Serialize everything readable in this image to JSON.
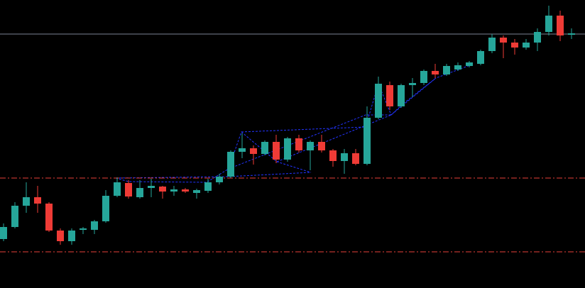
{
  "chart_data": {
    "type": "candlestick",
    "up_color": "#26a69a",
    "down_color": "#ef3b36",
    "ylim": [
      0,
      406
    ],
    "open": [
      69,
      86,
      116,
      128,
      119,
      81,
      66,
      82,
      82,
      94,
      130,
      148,
      128,
      141,
      143,
      136,
      139,
      134,
      137,
      149,
      157,
      192,
      197,
      189,
      206,
      181,
      211,
      194,
      206,
      194,
      179,
      190,
      175,
      240,
      286,
      256,
      286,
      289,
      306,
      301,
      308,
      313,
      316,
      334,
      353,
      346,
      339,
      346,
      361,
      384,
      357
    ],
    "high": [
      91,
      121,
      149,
      144,
      121,
      84,
      84,
      86,
      96,
      138,
      156,
      152,
      152,
      154,
      144,
      144,
      141,
      140,
      154,
      161,
      194,
      218,
      201,
      208,
      216,
      213,
      216,
      208,
      216,
      196,
      196,
      196,
      256,
      298,
      291,
      288,
      296,
      308,
      316,
      316,
      318,
      320,
      336,
      358,
      356,
      351,
      351,
      366,
      398,
      391,
      366
    ],
    "low": [
      66,
      84,
      106,
      106,
      79,
      61,
      61,
      76,
      76,
      92,
      128,
      126,
      126,
      128,
      126,
      130,
      134,
      126,
      134,
      146,
      155,
      183,
      174,
      187,
      176,
      178,
      191,
      166,
      191,
      171,
      161,
      173,
      173,
      238,
      251,
      254,
      269,
      286,
      296,
      299,
      306,
      311,
      314,
      331,
      324,
      329,
      336,
      334,
      356,
      348,
      351
    ],
    "close": [
      86,
      116,
      128,
      119,
      81,
      66,
      81,
      84,
      94,
      130,
      149,
      129,
      141,
      144,
      136,
      139,
      136,
      138,
      149,
      157,
      192,
      197,
      189,
      206,
      181,
      211,
      194,
      206,
      194,
      179,
      190,
      175,
      240,
      288,
      256,
      286,
      289,
      306,
      301,
      313,
      314,
      318,
      334,
      353,
      346,
      339,
      346,
      361,
      384,
      356,
      359
    ],
    "hlines": [
      {
        "value": 358,
        "color": "#7d8394"
      },
      {
        "value": 155,
        "color": "#e8413a"
      },
      {
        "value": 51,
        "color": "#e8413a"
      }
    ]
  }
}
